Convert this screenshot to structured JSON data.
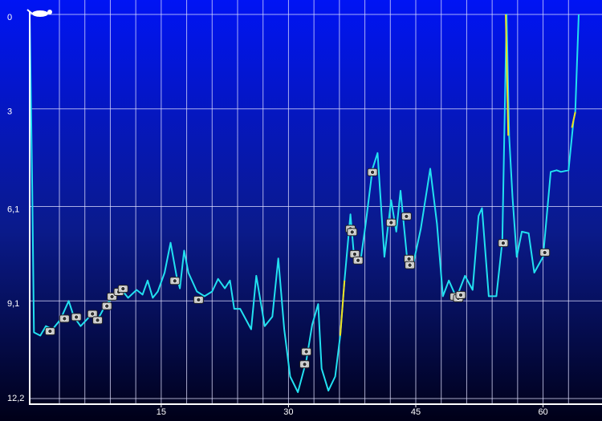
{
  "chart_data": {
    "type": "line",
    "invert_y": true,
    "grid": true,
    "xlim": [
      -0.5,
      66
    ],
    "ylim": [
      0,
      12.2
    ],
    "xticks": [
      15,
      30,
      45,
      60
    ],
    "xgrid": [
      3,
      6,
      9,
      12,
      15,
      18,
      21,
      24,
      27,
      30,
      33,
      36,
      39,
      42,
      45,
      48,
      51,
      54,
      57,
      60,
      63
    ],
    "yticks": [
      0,
      3,
      {
        "value": 6.1,
        "label": "6,1"
      },
      {
        "value": 9.1,
        "label": "9,1"
      },
      {
        "value": 12.2,
        "label": "12,2"
      }
    ],
    "series": [
      {
        "color": "#22e0f0",
        "x": [
          -0.5,
          -0.2,
          0,
          0.75,
          1.4,
          2.2,
          3.1,
          4.1,
          4.7,
          5.5,
          6.2,
          6.9,
          7.5,
          8.3,
          9.2,
          10.2,
          11.1,
          12.1,
          12.8,
          13.4,
          14.0,
          14.6,
          15.4,
          16.1,
          16.8,
          17.2,
          17.7,
          18.2,
          19.2,
          20.1,
          21.0,
          21.7,
          22.5,
          23.1,
          23.6,
          24.3,
          25.6,
          26.2,
          27.2,
          28.1,
          28.8,
          29.5,
          30.2,
          31.1,
          32.1,
          32.8,
          33.5,
          33.9,
          34.7,
          35.5,
          36.1,
          36.6,
          37.3,
          37.7,
          38.5,
          39.1,
          39.9,
          40.5,
          41.3,
          42.1,
          42.7,
          43.2,
          43.96,
          44.6,
          45.6,
          46.7,
          47.5,
          48.2,
          48.9,
          49.8,
          50.8,
          51.7,
          52.4,
          52.8,
          53.6,
          54.5,
          55.2,
          55.7,
          56.0,
          56.4,
          56.9,
          57.5,
          58.3,
          58.96,
          60.0,
          60.9,
          61.6,
          62.1,
          63.0,
          63.6,
          63.8,
          64.2
        ],
        "values": [
          0,
          5.6,
          10.1,
          10.2,
          9.9,
          10.0,
          9.7,
          9.1,
          9.6,
          9.9,
          9.7,
          9.5,
          9.7,
          9.3,
          9.0,
          8.7,
          9.0,
          8.75,
          8.9,
          8.45,
          9.0,
          8.8,
          8.2,
          7.25,
          8.3,
          8.7,
          7.5,
          8.2,
          8.8,
          8.95,
          8.8,
          8.4,
          8.7,
          8.45,
          9.35,
          9.35,
          10.0,
          8.3,
          9.9,
          9.6,
          7.75,
          10.0,
          11.5,
          12.0,
          11.0,
          9.85,
          9.2,
          11.25,
          11.95,
          11.5,
          10.2,
          8.45,
          6.35,
          7.6,
          7.8,
          6.65,
          4.9,
          4.4,
          7.7,
          5.9,
          6.9,
          5.6,
          7.7,
          8.05,
          6.8,
          4.9,
          6.65,
          8.95,
          8.45,
          9.0,
          8.3,
          8.75,
          6.4,
          6.15,
          8.95,
          8.95,
          7.2,
          0,
          3.85,
          5.8,
          7.7,
          6.9,
          6.95,
          8.2,
          7.7,
          5.0,
          4.95,
          5.0,
          4.95,
          3.35,
          3.1,
          0
        ]
      },
      {
        "color": "#f0e020",
        "x": [
          36.1,
          36.6,
          36.6,
          55.6,
          55.9,
          55.9,
          63.4,
          63.8
        ],
        "values": [
          10.2,
          8.45,
          null,
          0,
          3.85,
          null,
          3.6,
          3.1
        ]
      }
    ],
    "photos": {
      "x": [
        1.9,
        3.6,
        5.0,
        6.9,
        7.5,
        8.6,
        9.2,
        10.0,
        10.5,
        16.6,
        19.4,
        32.1,
        31.9,
        37.3,
        37.5,
        37.8,
        38.2,
        39.9,
        42.1,
        43.9,
        44.2,
        44.3,
        49.6,
        50.0,
        50.3,
        55.3,
        60.2
      ],
      "y": [
        10.05,
        9.65,
        9.6,
        9.5,
        9.7,
        9.25,
        8.95,
        8.8,
        8.7,
        8.45,
        9.05,
        10.7,
        11.1,
        6.8,
        6.9,
        7.6,
        7.8,
        5.0,
        6.6,
        6.4,
        7.75,
        7.95,
        8.95,
        9.0,
        8.9,
        7.25,
        7.55
      ]
    }
  }
}
